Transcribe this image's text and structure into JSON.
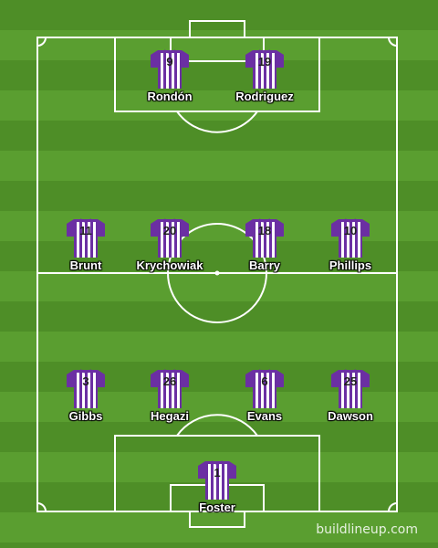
{
  "pitch": {
    "grass_dark": "#4e8e27",
    "grass_light": "#5a9e30",
    "line_color": "#ffffff"
  },
  "kit": {
    "primary": "#6b2fa3",
    "stripe": "#ffffff",
    "number_color": "#202020"
  },
  "players": [
    {
      "number": "9",
      "name": "Rondón"
    },
    {
      "number": "19",
      "name": "Rodriguez"
    },
    {
      "number": "11",
      "name": "Brunt"
    },
    {
      "number": "20",
      "name": "Krychowiak"
    },
    {
      "number": "18",
      "name": "Barry"
    },
    {
      "number": "10",
      "name": "Phillips"
    },
    {
      "number": "3",
      "name": "Gibbs"
    },
    {
      "number": "26",
      "name": "Hegazi"
    },
    {
      "number": "6",
      "name": "Evans"
    },
    {
      "number": "25",
      "name": "Dawson"
    },
    {
      "number": "1",
      "name": "Foster"
    }
  ],
  "watermark": "buildlineup.com"
}
